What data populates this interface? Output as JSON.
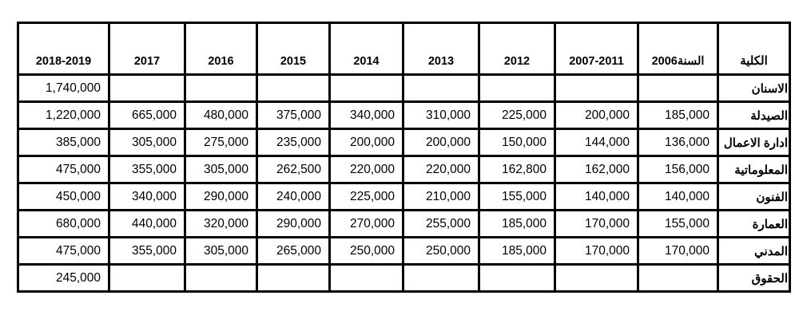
{
  "table": {
    "college_header": "الكلية",
    "year_columns": [
      "السنة2006",
      "2007-2011",
      "2012",
      "2013",
      "2014",
      "2015",
      "2016",
      "2017",
      "2018-2019"
    ],
    "rows": [
      {
        "college": "الاسنان",
        "values": [
          "",
          "",
          "",
          "",
          "",
          "",
          "",
          "",
          "1,740,000"
        ]
      },
      {
        "college": "الصيدلة",
        "values": [
          "185,000",
          "200,000",
          "225,000",
          "310,000",
          "340,000",
          "375,000",
          "480,000",
          "665,000",
          "1,220,000"
        ]
      },
      {
        "college": "ادارة الاعمال",
        "values": [
          "136,000",
          "144,000",
          "150,000",
          "200,000",
          "200,000",
          "235,000",
          "275,000",
          "305,000",
          "385,000"
        ]
      },
      {
        "college": "المعلوماتية",
        "values": [
          "156,000",
          "162,000",
          "162,800",
          "220,000",
          "220,000",
          "262,500",
          "305,000",
          "355,000",
          "475,000"
        ]
      },
      {
        "college": "الفنون",
        "values": [
          "140,000",
          "140,000",
          "155,000",
          "210,000",
          "225,000",
          "240,000",
          "290,000",
          "340,000",
          "450,000"
        ]
      },
      {
        "college": "العمارة",
        "values": [
          "155,000",
          "170,000",
          "185,000",
          "255,000",
          "270,000",
          "290,000",
          "320,000",
          "440,000",
          "680,000"
        ]
      },
      {
        "college": "المدني",
        "values": [
          "170,000",
          "170,000",
          "185,000",
          "250,000",
          "250,000",
          "265,000",
          "305,000",
          "355,000",
          "475,000"
        ]
      },
      {
        "college": "الحقوق",
        "values": [
          "",
          "",
          "",
          "",
          "",
          "",
          "",
          "",
          "245,000"
        ]
      }
    ],
    "colors": {
      "border": "#000000",
      "text": "#000000",
      "background": "#ffffff"
    }
  }
}
